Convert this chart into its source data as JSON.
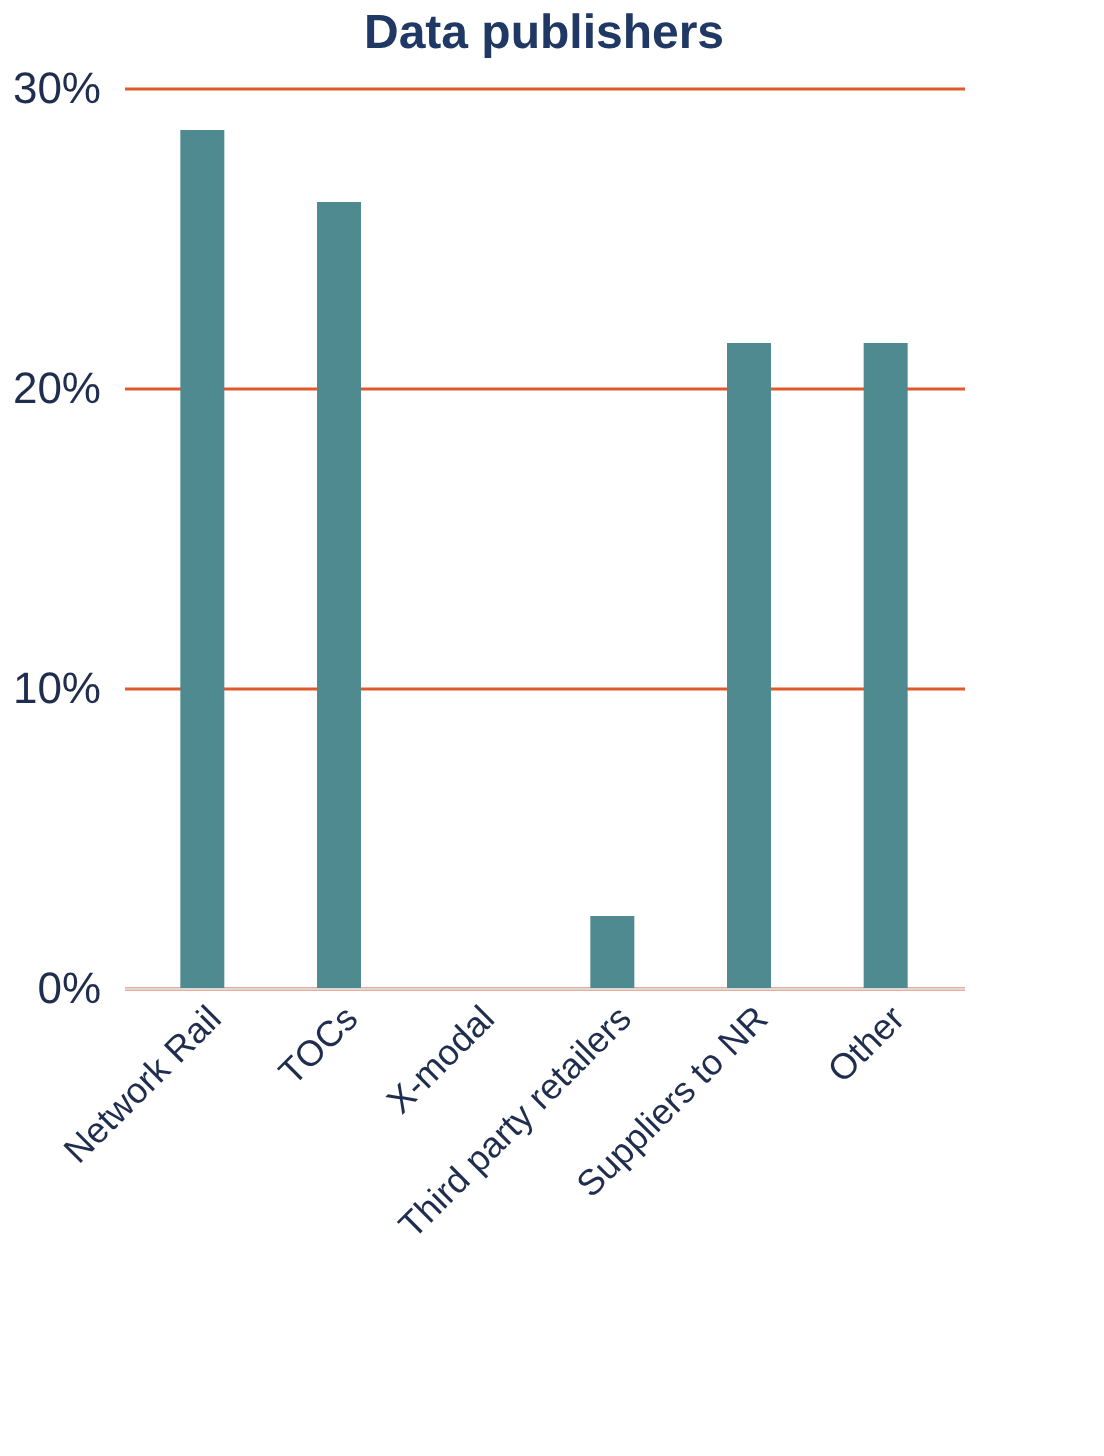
{
  "chart_data": {
    "type": "bar",
    "title": "Data publishers",
    "categories": [
      "Network Rail",
      "TOCs",
      "X-modal",
      "Third party retailers",
      "Suppliers to NR",
      "Other"
    ],
    "values": [
      28.6,
      26.2,
      0,
      2.4,
      21.5,
      21.5
    ],
    "color": "#4e8a8f",
    "ylim": [
      0,
      30
    ],
    "yticks": [
      {
        "value": 0,
        "label": "0%"
      },
      {
        "value": 10,
        "label": "10%"
      },
      {
        "value": 20,
        "label": "20%"
      },
      {
        "value": 30,
        "label": "30%"
      }
    ],
    "grid": "y"
  }
}
